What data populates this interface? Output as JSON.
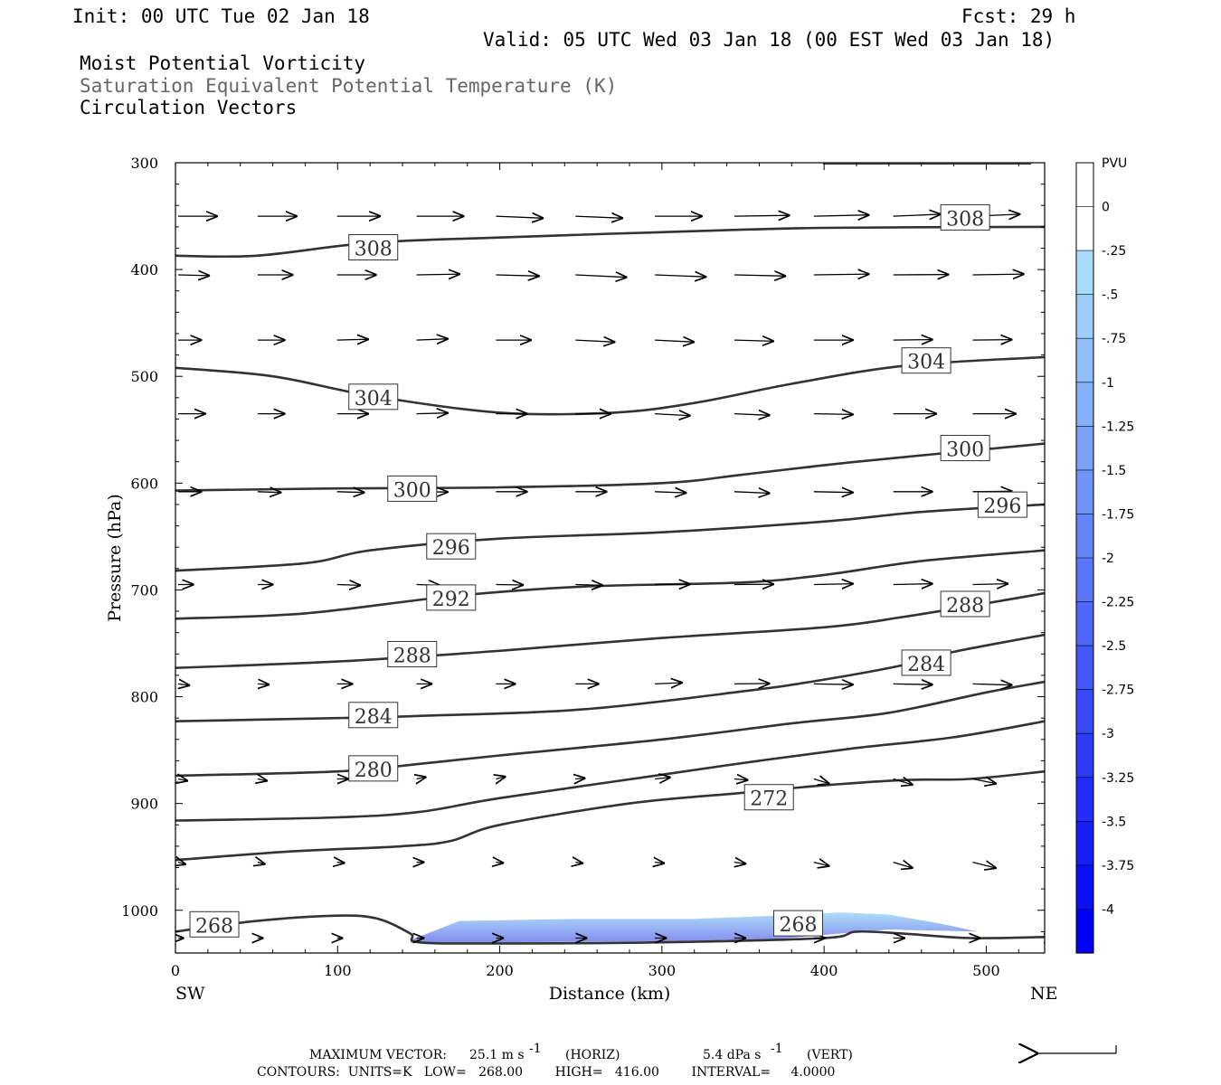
{
  "header": {
    "init": "Init: 00 UTC Tue 02 Jan 18",
    "fcst": "Fcst:   29 h",
    "valid": "Valid: 05 UTC Wed 03 Jan 18 (00 EST Wed 03 Jan 18)",
    "fields": [
      "Moist Potential Vorticity",
      "Saturation Equivalent Potential Temperature (K)",
      "Circulation Vectors"
    ]
  },
  "colors": {
    "contour": "#333333",
    "field_grey": "#666666",
    "pv_light": "#a8dcf8",
    "pv_dark": "#0000f5"
  },
  "chart_data": {
    "type": "cross-section",
    "xlabel": "Distance (km)",
    "ylabel": "Pressure (hPa)",
    "xlim": [
      0,
      536
    ],
    "ylim": [
      1040,
      300
    ],
    "x_ticks": [
      "0",
      "100",
      "200",
      "300",
      "400",
      "500"
    ],
    "x_tick_values": [
      0,
      100,
      200,
      300,
      400,
      500
    ],
    "y_ticks": [
      "300",
      "400",
      "500",
      "600",
      "700",
      "800",
      "900",
      "1000"
    ],
    "y_tick_values": [
      300,
      400,
      500,
      600,
      700,
      800,
      900,
      1000
    ],
    "endpoints": {
      "left": "SW",
      "right": "NE"
    },
    "theta_e_contours": [
      {
        "value": 308,
        "label": "308",
        "points": [
          [
            0,
            387
          ],
          [
            50,
            387
          ],
          [
            120,
            375
          ],
          [
            200,
            370
          ],
          [
            300,
            365
          ],
          [
            400,
            361
          ],
          [
            536,
            360
          ]
        ],
        "labels_at": [
          [
            122,
            380
          ],
          [
            487,
            352
          ]
        ]
      },
      {
        "value": 304,
        "label": "304",
        "points": [
          [
            0,
            492
          ],
          [
            60,
            500
          ],
          [
            120,
            518
          ],
          [
            200,
            534
          ],
          [
            270,
            534
          ],
          [
            320,
            525
          ],
          [
            380,
            507
          ],
          [
            450,
            490
          ],
          [
            536,
            482
          ]
        ],
        "labels_at": [
          [
            122,
            520
          ],
          [
            463,
            486
          ]
        ]
      },
      {
        "value": 300,
        "label": "300",
        "points": [
          [
            0,
            607
          ],
          [
            100,
            605
          ],
          [
            200,
            604
          ],
          [
            300,
            600
          ],
          [
            350,
            592
          ],
          [
            420,
            580
          ],
          [
            536,
            563
          ]
        ],
        "labels_at": [
          [
            146,
            606
          ],
          [
            487,
            568
          ]
        ]
      },
      {
        "value": 296,
        "label": "296",
        "points": [
          [
            0,
            682
          ],
          [
            80,
            675
          ],
          [
            120,
            663
          ],
          [
            200,
            652
          ],
          [
            300,
            646
          ],
          [
            400,
            636
          ],
          [
            460,
            627
          ],
          [
            536,
            620
          ]
        ],
        "labels_at": [
          [
            170,
            660
          ],
          [
            510,
            621
          ]
        ]
      },
      {
        "value": 292,
        "label": "292",
        "points": [
          [
            0,
            727
          ],
          [
            80,
            722
          ],
          [
            170,
            706
          ],
          [
            250,
            697
          ],
          [
            350,
            693
          ],
          [
            400,
            686
          ],
          [
            460,
            673
          ],
          [
            536,
            663
          ]
        ],
        "labels_at": [
          [
            170,
            708
          ]
        ]
      },
      {
        "value": 288,
        "label": "288",
        "points": [
          [
            0,
            773
          ],
          [
            100,
            767
          ],
          [
            200,
            757
          ],
          [
            300,
            745
          ],
          [
            400,
            735
          ],
          [
            450,
            725
          ],
          [
            510,
            710
          ],
          [
            536,
            703
          ]
        ],
        "labels_at": [
          [
            146,
            761
          ],
          [
            487,
            714
          ]
        ]
      },
      {
        "value": 284,
        "label": "284",
        "points": [
          [
            0,
            823
          ],
          [
            100,
            820
          ],
          [
            150,
            818
          ],
          [
            250,
            812
          ],
          [
            350,
            795
          ],
          [
            400,
            784
          ],
          [
            450,
            770
          ],
          [
            480,
            758
          ],
          [
            536,
            742
          ]
        ],
        "labels_at": [
          [
            122,
            818
          ],
          [
            463,
            769
          ]
        ]
      },
      {
        "value": 280,
        "label": "280",
        "points": [
          [
            0,
            874
          ],
          [
            100,
            870
          ],
          [
            150,
            863
          ],
          [
            200,
            855
          ],
          [
            300,
            840
          ],
          [
            380,
            825
          ],
          [
            440,
            815
          ],
          [
            500,
            796
          ],
          [
            536,
            786
          ]
        ],
        "labels_at": [
          [
            122,
            868
          ]
        ]
      },
      {
        "value": 276,
        "label": "",
        "points": [
          [
            0,
            916
          ],
          [
            100,
            913
          ],
          [
            150,
            908
          ],
          [
            200,
            895
          ],
          [
            300,
            873
          ],
          [
            360,
            860
          ],
          [
            420,
            848
          ],
          [
            480,
            838
          ],
          [
            536,
            823
          ]
        ],
        "labels_at": []
      },
      {
        "value": 272,
        "label": "272",
        "points": [
          [
            0,
            953
          ],
          [
            70,
            945
          ],
          [
            140,
            940
          ],
          [
            170,
            935
          ],
          [
            200,
            920
          ],
          [
            280,
            900
          ],
          [
            350,
            890
          ],
          [
            400,
            883
          ],
          [
            450,
            878
          ],
          [
            490,
            877
          ],
          [
            536,
            870
          ]
        ],
        "labels_at": [
          [
            366,
            895
          ]
        ]
      },
      {
        "value": 268,
        "label": "268",
        "points": [
          [
            0,
            1020
          ],
          [
            50,
            1010
          ],
          [
            100,
            1005
          ],
          [
            125,
            1008
          ],
          [
            145,
            1022
          ],
          [
            150,
            1030
          ],
          [
            200,
            1031
          ],
          [
            300,
            1030
          ],
          [
            400,
            1026
          ],
          [
            420,
            1020
          ],
          [
            450,
            1022
          ],
          [
            490,
            1026
          ],
          [
            536,
            1025
          ]
        ],
        "labels_at": [
          [
            24,
            1014
          ],
          [
            384,
            1013
          ]
        ]
      }
    ],
    "pv_shading": {
      "levels": [
        "PVU",
        "0",
        "-.25",
        "-.5",
        "-.75",
        "-1",
        "-1.25",
        "-1.5",
        "-1.75",
        "-2",
        "-2.25",
        "-2.5",
        "-2.75",
        "-3",
        "-3.25",
        "-3.5",
        "-3.75",
        "-4"
      ],
      "region": {
        "upper": [
          [
            145,
            1028
          ],
          [
            175,
            1010
          ],
          [
            250,
            1008
          ],
          [
            320,
            1008
          ],
          [
            370,
            1005
          ],
          [
            410,
            1002
          ],
          [
            440,
            1004
          ],
          [
            470,
            1012
          ],
          [
            495,
            1020
          ]
        ],
        "lower": [
          [
            495,
            1020
          ],
          [
            440,
            1018
          ],
          [
            370,
            1027
          ],
          [
            300,
            1029
          ],
          [
            200,
            1030
          ],
          [
            145,
            1030
          ]
        ]
      }
    },
    "vectors": {
      "rows": [
        {
          "p": 350,
          "x": [
            0,
            49,
            98,
            147,
            196,
            245,
            294,
            343,
            392,
            441,
            490,
            536
          ],
          "u": [
            1.0,
            1.0,
            1.1,
            1.2,
            1.2,
            1.2,
            1.2,
            1.4,
            1.4,
            1.2,
            1.2,
            1.4
          ],
          "w": [
            0,
            0,
            0,
            0,
            -0.05,
            -0.05,
            0,
            0.02,
            0.03,
            0.05,
            0.05,
            -0.1
          ]
        },
        {
          "p": 405,
          "x": [
            0,
            49,
            98,
            147,
            196,
            245,
            294,
            343,
            392,
            441,
            490,
            536
          ],
          "u": [
            0.8,
            0.9,
            1.0,
            1.1,
            1.1,
            1.3,
            1.3,
            1.3,
            1.4,
            1.4,
            1.3,
            1.2
          ],
          "w": [
            -0.02,
            0,
            0,
            0.02,
            -0.03,
            -0.06,
            -0.05,
            -0.03,
            0.02,
            0.01,
            0.02,
            -0.06
          ]
        },
        {
          "p": 466,
          "x": [
            0,
            49,
            98,
            147,
            196,
            245,
            294,
            343,
            392,
            441,
            490,
            536
          ],
          "u": [
            0.6,
            0.7,
            0.8,
            0.8,
            0.9,
            1.0,
            1.0,
            1.0,
            1.0,
            1.0,
            1.0,
            1.0
          ],
          "w": [
            0,
            0,
            0.02,
            0.03,
            0,
            -0.05,
            -0.05,
            -0.03,
            0,
            0.01,
            0.01,
            -0.03
          ]
        },
        {
          "p": 535,
          "x": [
            0,
            49,
            98,
            147,
            196,
            245,
            294,
            343,
            392,
            441,
            490,
            536
          ],
          "u": [
            0.7,
            0.7,
            0.8,
            0.8,
            0.8,
            0.9,
            0.9,
            0.9,
            1.0,
            1.1,
            1.1,
            1.0
          ],
          "w": [
            0,
            0,
            0,
            0.02,
            0,
            0,
            -0.05,
            -0.04,
            -0.02,
            0,
            0,
            -0.02
          ]
        },
        {
          "p": 608,
          "x": [
            0,
            49,
            98,
            147,
            196,
            245,
            294,
            343,
            392,
            441,
            490,
            536
          ],
          "u": [
            0.6,
            0.6,
            0.7,
            0.8,
            0.8,
            0.8,
            0.8,
            0.9,
            1.0,
            1.0,
            1.0,
            0.9
          ],
          "w": [
            0,
            -0.02,
            -0.02,
            -0.01,
            0,
            0,
            -0.03,
            -0.04,
            -0.02,
            0,
            0.01,
            -0.03
          ]
        },
        {
          "p": 695,
          "x": [
            0,
            49,
            98,
            147,
            196,
            245,
            294,
            343,
            392,
            441,
            490,
            536
          ],
          "u": [
            0.4,
            0.4,
            0.6,
            0.6,
            0.7,
            0.7,
            0.9,
            1.0,
            1.0,
            1.0,
            0.9,
            0.9
          ],
          "w": [
            0,
            0,
            -0.02,
            -0.02,
            -0.01,
            -0.02,
            0.01,
            0.01,
            0.02,
            0.02,
            0.02,
            0.02
          ]
        },
        {
          "p": 788,
          "x": [
            0,
            49,
            98,
            147,
            196,
            245,
            294,
            343,
            392,
            441,
            490,
            536
          ],
          "u": [
            0.3,
            0.3,
            0.4,
            0.4,
            0.5,
            0.6,
            0.7,
            0.9,
            1.0,
            1.0,
            1.0,
            0.9
          ],
          "w": [
            -0.04,
            -0.02,
            0,
            0,
            0,
            0,
            0.03,
            0.01,
            -0.02,
            -0.02,
            -0.03,
            0
          ]
        },
        {
          "p": 877,
          "x": [
            0,
            49,
            98,
            147,
            196,
            245,
            294,
            343,
            392,
            441,
            490,
            536
          ],
          "u": [
            0.25,
            0.25,
            0.3,
            0.25,
            0.25,
            0.25,
            0.4,
            0.35,
            0.4,
            0.5,
            0.6,
            0.5
          ],
          "w": [
            -0.05,
            -0.05,
            0,
            0.05,
            0.06,
            0.02,
            0.04,
            -0.03,
            -0.12,
            -0.15,
            -0.12,
            -0.05
          ]
        },
        {
          "p": 955,
          "x": [
            0,
            49,
            98,
            147,
            196,
            245,
            294,
            343,
            392,
            441,
            490,
            536
          ],
          "u": [
            0.2,
            0.2,
            0.2,
            0.2,
            0.2,
            0.2,
            0.25,
            0.3,
            0.4,
            0.5,
            0.6,
            0.5
          ],
          "w": [
            -0.06,
            -0.05,
            -0.02,
            0,
            -0.02,
            -0.03,
            -0.03,
            -0.04,
            -0.1,
            -0.15,
            -0.15,
            -0.05
          ]
        },
        {
          "p": 1026,
          "x": [
            0,
            49,
            98,
            147,
            196,
            245,
            294,
            343,
            392,
            441,
            490,
            536
          ],
          "u": [
            0.15,
            0.15,
            0.15,
            0.2,
            0.2,
            0.3,
            0.3,
            0.3,
            0.3,
            0.3,
            0.2,
            0.2
          ],
          "w": [
            0,
            0,
            0,
            0,
            0,
            0,
            0,
            0,
            0,
            0,
            0,
            0
          ]
        }
      ]
    }
  },
  "footer": {
    "max_vector_label": "MAXIMUM VECTOR:",
    "max_horiz": "25.1 m s",
    "max_horiz_units": "(HORIZ)",
    "max_vert": "5.4 dPa s",
    "max_vert_units": "(VERT)",
    "exponent": "-1",
    "contours_line": "CONTOURS:  UNITS=K   LOW=   268.00        HIGH=   416.00        INTERVAL=     4.0000"
  }
}
